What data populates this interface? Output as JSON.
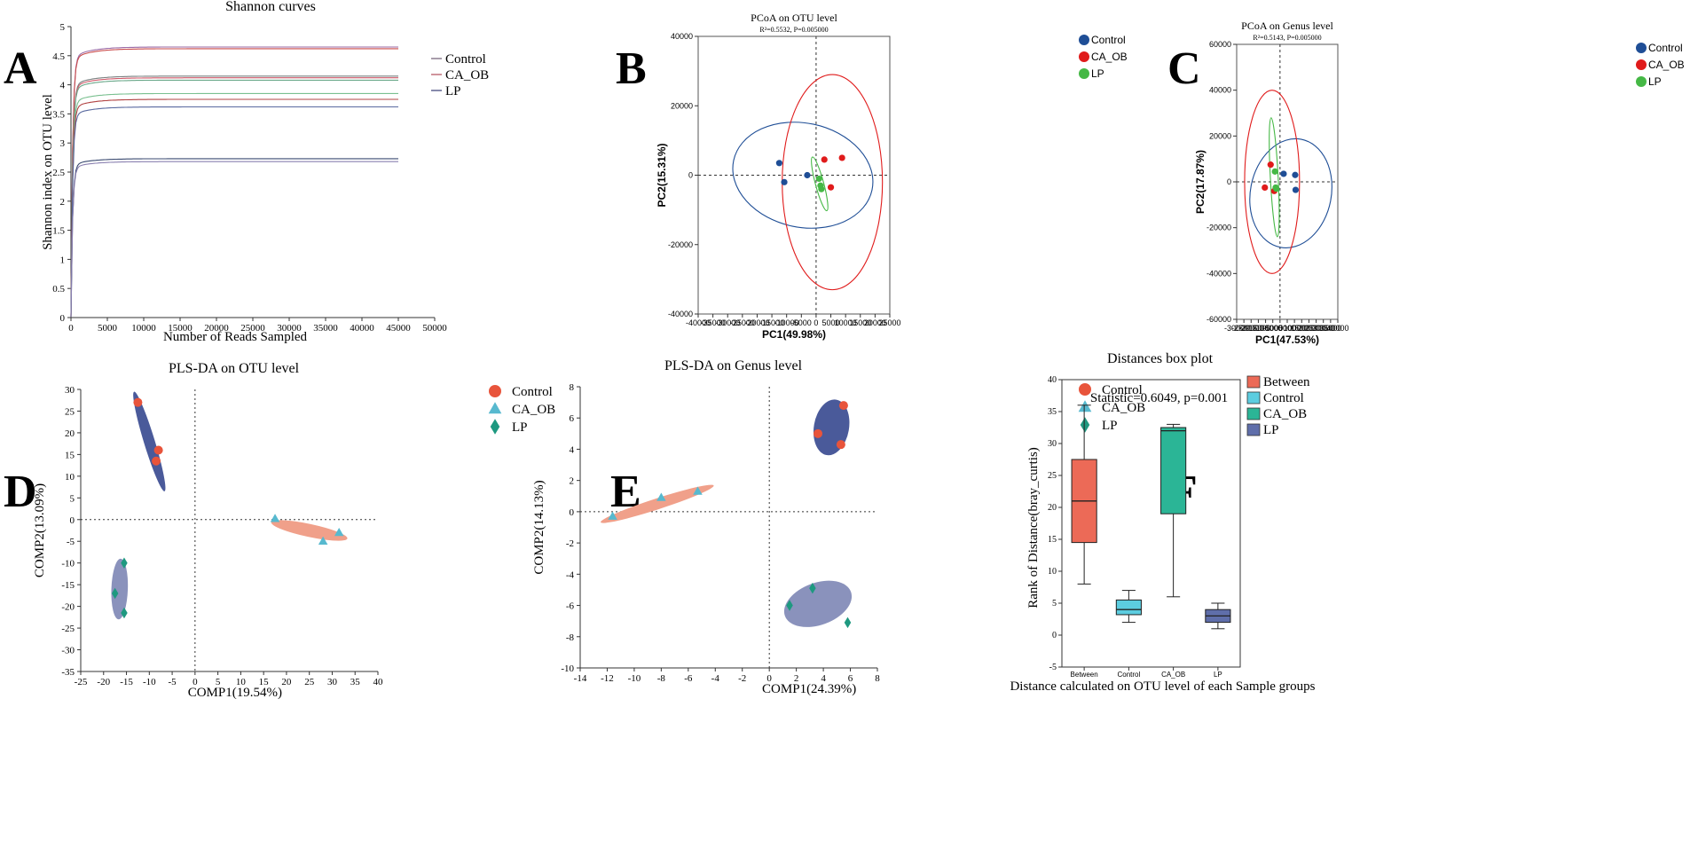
{
  "figure": {
    "letters": [
      "A",
      "B",
      "C",
      "D",
      "E",
      "F"
    ]
  },
  "chart_data": [
    {
      "id": "A",
      "type": "line",
      "title": "Shannon curves",
      "xlabel": "Number of Reads Sampled",
      "ylabel": "Shannon index on OTU level",
      "xlim": [
        0,
        50000
      ],
      "ylim": [
        0,
        5
      ],
      "xticks": [
        "0",
        "5000",
        "10000",
        "15000",
        "20000",
        "25000",
        "30000",
        "35000",
        "40000",
        "45000",
        "50000"
      ],
      "yticks": [
        "0",
        "0.5",
        "1",
        "1.5",
        "2",
        "2.5",
        "3",
        "3.5",
        "4",
        "4.5",
        "5"
      ],
      "legend": [
        {
          "name": "Control",
          "color": "#8a7c8f"
        },
        {
          "name": "CA_OB",
          "color": "#c0707a"
        },
        {
          "name": "LP",
          "color": "#5f6390"
        }
      ],
      "series": [
        {
          "name": "Control",
          "color": "#9a6aa6",
          "plateau": 4.65
        },
        {
          "name": "CA_OB",
          "color": "#c94a4a",
          "plateau": 4.62
        },
        {
          "name": "Control",
          "color": "#7a8080",
          "plateau": 4.15
        },
        {
          "name": "CA_OB",
          "color": "#d05a6a",
          "plateau": 4.12
        },
        {
          "name": "LP",
          "color": "#6aa88a",
          "plateau": 4.08
        },
        {
          "name": "LP",
          "color": "#7ac090",
          "plateau": 3.85
        },
        {
          "name": "CA_OB",
          "color": "#b04040",
          "plateau": 3.75
        },
        {
          "name": "LP",
          "color": "#5a6aa0",
          "plateau": 3.62
        },
        {
          "name": "Control",
          "color": "#3a4a70",
          "plateau": 2.73
        },
        {
          "name": "LP",
          "color": "#8a80b0",
          "plateau": 2.68
        }
      ],
      "x_end": 45000
    },
    {
      "id": "B",
      "type": "scatter",
      "title": "PCoA on OTU level",
      "subtitle": "R²=0.5532, P=0.005000",
      "xlabel": "PC1(49.98%)",
      "ylabel": "PC2(15.31%)",
      "xlim": [
        -40000,
        25000
      ],
      "ylim": [
        -40000,
        40000
      ],
      "xticks": [
        "-40000",
        "-35000",
        "-30000",
        "-25000",
        "-20000",
        "-15000",
        "-10000",
        "-5000",
        "0",
        "5000",
        "10000",
        "15000",
        "20000",
        "25000"
      ],
      "yticks": [
        "-40000",
        "-20000",
        "0",
        "20000",
        "40000"
      ],
      "legend": [
        {
          "name": "Control",
          "color": "#1f4e96"
        },
        {
          "name": "CA_OB",
          "color": "#e01b1b"
        },
        {
          "name": "LP",
          "color": "#45b845"
        }
      ],
      "points": [
        {
          "group": "Control",
          "x": -12500,
          "y": 3500
        },
        {
          "group": "Control",
          "x": -10800,
          "y": -2000
        },
        {
          "group": "Control",
          "x": -3000,
          "y": 0
        },
        {
          "group": "CA_OB",
          "x": 2800,
          "y": 4500
        },
        {
          "group": "CA_OB",
          "x": 8800,
          "y": 5000
        },
        {
          "group": "CA_OB",
          "x": 5000,
          "y": -3500
        },
        {
          "group": "LP",
          "x": 1000,
          "y": -1000
        },
        {
          "group": "LP",
          "x": 1500,
          "y": -3000
        },
        {
          "group": "LP",
          "x": 1800,
          "y": -4000
        }
      ],
      "ellipses": [
        {
          "group": "Control",
          "cx": -4500,
          "cy": 0,
          "rx": 24000,
          "ry": 15000,
          "angle": 12
        },
        {
          "group": "CA_OB",
          "cx": 5500,
          "cy": -2000,
          "rx": 17000,
          "ry": 31000,
          "angle": 0
        },
        {
          "group": "LP",
          "cx": 1200,
          "cy": -2500,
          "rx": 1400,
          "ry": 8000,
          "angle": -15
        }
      ]
    },
    {
      "id": "C",
      "type": "scatter",
      "title": "PCoA on Genus level",
      "subtitle": "R²=0.5143, P=0.005000",
      "xlabel": "PC1(47.53%)",
      "ylabel": "PC2(17.87%)",
      "xlim": [
        -30000,
        40000
      ],
      "ylim": [
        -60000,
        60000
      ],
      "xticks": [
        "-30000",
        "-25000",
        "-20000",
        "-15000",
        "-10000",
        "-5000",
        "0",
        "5000",
        "10000",
        "15000",
        "20000",
        "25000",
        "30000",
        "35000",
        "40000"
      ],
      "yticks": [
        "-60000",
        "-40000",
        "-20000",
        "0",
        "20000",
        "40000",
        "60000"
      ],
      "legend": [
        {
          "name": "Control",
          "color": "#1f4e96"
        },
        {
          "name": "CA_OB",
          "color": "#e01b1b"
        },
        {
          "name": "LP",
          "color": "#45b845"
        }
      ],
      "points": [
        {
          "group": "Control",
          "x": 2500,
          "y": 3500
        },
        {
          "group": "Control",
          "x": 10500,
          "y": 3000
        },
        {
          "group": "Control",
          "x": 10800,
          "y": -3500
        },
        {
          "group": "CA_OB",
          "x": -10500,
          "y": -2500
        },
        {
          "group": "CA_OB",
          "x": -6500,
          "y": 7500
        },
        {
          "group": "CA_OB",
          "x": -4000,
          "y": -4000
        },
        {
          "group": "LP",
          "x": -3500,
          "y": 4500
        },
        {
          "group": "LP",
          "x": -2500,
          "y": -3000
        },
        {
          "group": "LP",
          "x": -3000,
          "y": -2500
        }
      ],
      "ellipses": [
        {
          "group": "Control",
          "cx": 7500,
          "cy": -5000,
          "rx": 28000,
          "ry": 24000,
          "angle": 11
        },
        {
          "group": "CA_OB",
          "cx": -5500,
          "cy": 0,
          "rx": 19000,
          "ry": 40000,
          "angle": 0
        },
        {
          "group": "LP",
          "cx": -4000,
          "cy": 2000,
          "rx": 2700,
          "ry": 26000,
          "angle": -3
        }
      ]
    },
    {
      "id": "D",
      "type": "scatter",
      "title": "PLS-DA on OTU level",
      "xlabel": "COMP1(19.54%)",
      "ylabel": "COMP2(13.09%)",
      "xlim": [
        -25,
        40
      ],
      "ylim": [
        -35,
        30
      ],
      "xticks": [
        "-25",
        "-20",
        "-15",
        "-10",
        "-5",
        "0",
        "5",
        "10",
        "15",
        "20",
        "25",
        "30",
        "35",
        "40"
      ],
      "yticks": [
        "-35",
        "-30",
        "-25",
        "-20",
        "-15",
        "-10",
        "-5",
        "0",
        "5",
        "10",
        "15",
        "20",
        "25",
        "30"
      ],
      "legend": [
        {
          "name": "Control",
          "color": "#e8543b",
          "shape": "circle"
        },
        {
          "name": "CA_OB",
          "color": "#57b9cf",
          "shape": "triangle"
        },
        {
          "name": "LP",
          "color": "#1e9980",
          "shape": "diamond"
        }
      ],
      "points": [
        {
          "group": "Control",
          "x": -12.5,
          "y": 27
        },
        {
          "group": "Control",
          "x": -8,
          "y": 16
        },
        {
          "group": "Control",
          "x": -8.5,
          "y": 13.5
        },
        {
          "group": "CA_OB",
          "x": 17.5,
          "y": 0.2
        },
        {
          "group": "CA_OB",
          "x": 31.5,
          "y": -3
        },
        {
          "group": "CA_OB",
          "x": 28,
          "y": -5
        },
        {
          "group": "LP",
          "x": -15.5,
          "y": -10
        },
        {
          "group": "LP",
          "x": -17.5,
          "y": -17
        },
        {
          "group": "LP",
          "x": -15.5,
          "y": -21.5
        }
      ],
      "ellipses": [
        {
          "group": "Control",
          "color": "#4a5a9a",
          "cx": -10,
          "cy": 18,
          "rx": 1.2,
          "ry": 12,
          "angle": -17
        },
        {
          "group": "CA_OB",
          "color": "#f0a08a",
          "cx": 25,
          "cy": -2.5,
          "rx": 8.5,
          "ry": 1.5,
          "angle": 12
        },
        {
          "group": "LP",
          "color": "#8a92bc",
          "cx": -16.5,
          "cy": -16,
          "rx": 1.8,
          "ry": 7,
          "angle": 2
        }
      ]
    },
    {
      "id": "E",
      "type": "scatter",
      "title": "PLS-DA on Genus level",
      "xlabel": "COMP1(24.39%)",
      "ylabel": "COMP2(14.13%)",
      "xlim": [
        -14,
        8
      ],
      "ylim": [
        -10,
        8
      ],
      "xticks": [
        "-14",
        "-12",
        "-10",
        "-8",
        "-6",
        "-4",
        "-2",
        "0",
        "2",
        "4",
        "6",
        "8"
      ],
      "yticks": [
        "-10",
        "-8",
        "-6",
        "-4",
        "-2",
        "0",
        "2",
        "4",
        "6",
        "8"
      ],
      "legend": [
        {
          "name": "Control",
          "color": "#e8543b",
          "shape": "circle"
        },
        {
          "name": "CA_OB",
          "color": "#57b9cf",
          "shape": "triangle"
        },
        {
          "name": "LP",
          "color": "#1e9980",
          "shape": "diamond"
        }
      ],
      "points": [
        {
          "group": "Control",
          "x": 5.5,
          "y": 6.8
        },
        {
          "group": "Control",
          "x": 3.6,
          "y": 5.0
        },
        {
          "group": "Control",
          "x": 5.3,
          "y": 4.3
        },
        {
          "group": "CA_OB",
          "x": -11.6,
          "y": -0.3
        },
        {
          "group": "CA_OB",
          "x": -8,
          "y": 0.9
        },
        {
          "group": "CA_OB",
          "x": -5.3,
          "y": 1.3
        },
        {
          "group": "LP",
          "x": 3.2,
          "y": -4.9
        },
        {
          "group": "LP",
          "x": 1.5,
          "y": -6
        },
        {
          "group": "LP",
          "x": 5.8,
          "y": -7.1
        }
      ],
      "ellipses": [
        {
          "group": "Control",
          "color": "#4a5a9a",
          "cx": 4.6,
          "cy": 5.4,
          "rx": 1.3,
          "ry": 1.8,
          "angle": 10
        },
        {
          "group": "CA_OB",
          "color": "#f0a08a",
          "cx": -8.3,
          "cy": 0.5,
          "rx": 4.4,
          "ry": 0.35,
          "angle": -18
        },
        {
          "group": "LP",
          "color": "#8a92bc",
          "cx": 3.6,
          "cy": -5.9,
          "rx": 2.6,
          "ry": 1.35,
          "angle": -20
        }
      ]
    },
    {
      "id": "F",
      "type": "box",
      "title": "Distances box plot",
      "annotation": "Statistic=0.6049, p=0.001",
      "xlabel": "Distance calculated on OTU level of each Sample groups",
      "ylabel": "Rank of Distance(bray_curtis)",
      "ylim": [
        -5,
        40
      ],
      "yticks": [
        "-5",
        "0",
        "5",
        "10",
        "15",
        "20",
        "25",
        "30",
        "35",
        "40"
      ],
      "categories": [
        "Between",
        "Control",
        "CA_OB",
        "LP"
      ],
      "legend": [
        {
          "name": "Between",
          "color": "#ec6a57"
        },
        {
          "name": "Control",
          "color": "#5ccde0"
        },
        {
          "name": "CA_OB",
          "color": "#2bb596"
        },
        {
          "name": "LP",
          "color": "#5f6eaa"
        }
      ],
      "boxes": [
        {
          "name": "Between",
          "min": 8,
          "q1": 14.5,
          "median": 21,
          "q3": 27.5,
          "max": 36,
          "color": "#ec6a57"
        },
        {
          "name": "Control",
          "min": 2,
          "q1": 3.2,
          "median": 4,
          "q3": 5.5,
          "max": 7,
          "color": "#5ccde0"
        },
        {
          "name": "CA_OB",
          "min": 6,
          "q1": 19,
          "median": 32,
          "q3": 32.5,
          "max": 33,
          "color": "#2bb596"
        },
        {
          "name": "LP",
          "min": 1,
          "q1": 2,
          "median": 3,
          "q3": 4,
          "max": 5,
          "color": "#5f6eaa"
        }
      ]
    }
  ]
}
